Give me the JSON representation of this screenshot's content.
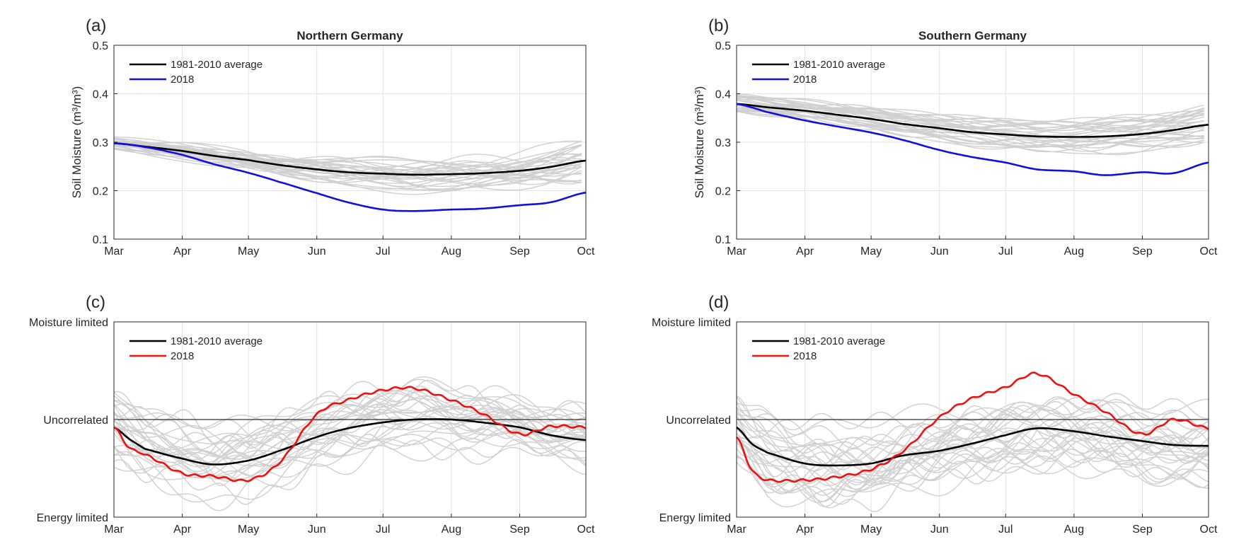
{
  "colors": {
    "average": "#000000",
    "soil_2018": "#1010e0",
    "coupling_2018": "#ee1111",
    "ensemble": "#d0d0d0",
    "grid": "#e3e3e3",
    "axes": "#262626"
  },
  "chart_data": [
    {
      "id": "a",
      "type": "line",
      "panel_label": "(a)",
      "title": "Northern Germany",
      "ylabel": "Soil Moisture (m³/m³)",
      "ylim": [
        0.1,
        0.5
      ],
      "yticks": [
        "0.1",
        "0.2",
        "0.3",
        "0.4",
        "0.5"
      ],
      "xticks": [
        "Mar",
        "Apr",
        "May",
        "Jun",
        "Jul",
        "Aug",
        "Sep",
        "Oct"
      ],
      "grid": true,
      "legend_position": "top-left",
      "x": [
        "Mar 1",
        "Mar 15",
        "Apr 1",
        "Apr 15",
        "May 1",
        "May 15",
        "Jun 1",
        "Jun 15",
        "Jul 1",
        "Jul 15",
        "Aug 1",
        "Aug 15",
        "Sep 1",
        "Sep 15",
        "Oct 1"
      ],
      "series": [
        {
          "name": "1981-2010 average",
          "role": "average",
          "values": [
            0.298,
            0.291,
            0.282,
            0.272,
            0.263,
            0.253,
            0.244,
            0.238,
            0.235,
            0.233,
            0.234,
            0.236,
            0.241,
            0.249,
            0.262
          ]
        },
        {
          "name": "2018",
          "role": "year",
          "values": [
            0.298,
            0.29,
            0.274,
            0.255,
            0.237,
            0.218,
            0.195,
            0.176,
            0.161,
            0.158,
            0.161,
            0.163,
            0.17,
            0.176,
            0.196
          ]
        }
      ],
      "ensemble": {
        "count": 30,
        "spread_start": 0.014,
        "spread_end": 0.05
      }
    },
    {
      "id": "b",
      "type": "line",
      "panel_label": "(b)",
      "title": "Southern Germany",
      "ylabel": "Soil Moisture (m³/m³)",
      "ylim": [
        0.1,
        0.5
      ],
      "yticks": [
        "0.1",
        "0.2",
        "0.3",
        "0.4",
        "0.5"
      ],
      "xticks": [
        "Mar",
        "Apr",
        "May",
        "Jun",
        "Jul",
        "Aug",
        "Sep",
        "Oct"
      ],
      "grid": true,
      "legend_position": "top-left",
      "x": [
        "Mar 1",
        "Mar 15",
        "Apr 1",
        "Apr 15",
        "May 1",
        "May 15",
        "Jun 1",
        "Jun 15",
        "Jul 1",
        "Jul 15",
        "Aug 1",
        "Aug 15",
        "Sep 1",
        "Sep 15",
        "Oct 1"
      ],
      "series": [
        {
          "name": "1981-2010 average",
          "role": "average",
          "values": [
            0.379,
            0.372,
            0.365,
            0.357,
            0.348,
            0.338,
            0.329,
            0.321,
            0.316,
            0.312,
            0.311,
            0.312,
            0.317,
            0.325,
            0.336
          ]
        },
        {
          "name": "2018",
          "role": "year",
          "values": [
            0.379,
            0.362,
            0.345,
            0.333,
            0.32,
            0.305,
            0.284,
            0.27,
            0.258,
            0.244,
            0.24,
            0.232,
            0.238,
            0.236,
            0.258
          ]
        }
      ],
      "ensemble": {
        "count": 30,
        "spread_start": 0.016,
        "spread_end": 0.035
      }
    },
    {
      "id": "c",
      "type": "line",
      "panel_label": "(c)",
      "title": "",
      "ylabel": "",
      "ylim": [
        -1,
        1
      ],
      "ytick_values": [
        -1,
        0,
        1
      ],
      "yticks": [
        "Energy limited",
        "Uncorrelated",
        "Moisture limited"
      ],
      "xticks": [
        "Mar",
        "Apr",
        "May",
        "Jun",
        "Jul",
        "Aug",
        "Sep",
        "Oct"
      ],
      "grid": true,
      "reference_line": 0,
      "legend_position": "top-left",
      "x": [
        "Mar 1",
        "Mar 8",
        "Mar 15",
        "Apr 1",
        "Apr 15",
        "May 1",
        "May 15",
        "Jun 1",
        "Jun 15",
        "Jul 1",
        "Jul 15",
        "Aug 1",
        "Aug 15",
        "Sep 1",
        "Sep 15",
        "Oct 1"
      ],
      "series": [
        {
          "name": "1981-2010 average",
          "role": "average",
          "values": [
            -0.08,
            -0.2,
            -0.3,
            -0.4,
            -0.46,
            -0.42,
            -0.32,
            -0.18,
            -0.09,
            -0.03,
            0.0,
            0.0,
            -0.03,
            -0.08,
            -0.16,
            -0.21
          ]
        },
        {
          "name": "2018",
          "role": "year",
          "values": [
            -0.08,
            -0.29,
            -0.36,
            -0.55,
            -0.58,
            -0.62,
            -0.44,
            0.05,
            0.2,
            0.3,
            0.32,
            0.2,
            0.06,
            -0.15,
            -0.07,
            -0.08
          ]
        }
      ],
      "ensemble": {
        "count": 30,
        "spread_start": 0.35,
        "spread_end": 0.25
      }
    },
    {
      "id": "d",
      "type": "line",
      "panel_label": "(d)",
      "title": "",
      "ylabel": "",
      "ylim": [
        -1,
        1
      ],
      "ytick_values": [
        -1,
        0,
        1
      ],
      "yticks": [
        "Energy limited",
        "Uncorrelated",
        "Moisture limited"
      ],
      "xticks": [
        "Mar",
        "Apr",
        "May",
        "Jun",
        "Jul",
        "Aug",
        "Sep",
        "Oct"
      ],
      "grid": true,
      "reference_line": 0,
      "legend_position": "top-left",
      "x": [
        "Mar 1",
        "Mar 8",
        "Mar 15",
        "Apr 1",
        "Apr 15",
        "May 1",
        "May 15",
        "Jun 1",
        "Jun 15",
        "Jul 1",
        "Jul 15",
        "Aug 1",
        "Aug 15",
        "Sep 1",
        "Sep 15",
        "Oct 1"
      ],
      "series": [
        {
          "name": "1981-2010 average",
          "role": "average",
          "values": [
            -0.08,
            -0.25,
            -0.34,
            -0.45,
            -0.47,
            -0.45,
            -0.37,
            -0.32,
            -0.25,
            -0.16,
            -0.09,
            -0.12,
            -0.17,
            -0.22,
            -0.26,
            -0.27
          ]
        },
        {
          "name": "2018",
          "role": "year",
          "values": [
            -0.18,
            -0.52,
            -0.62,
            -0.62,
            -0.59,
            -0.51,
            -0.33,
            0.02,
            0.21,
            0.33,
            0.47,
            0.26,
            0.08,
            -0.15,
            0.0,
            -0.09
          ]
        }
      ],
      "ensemble": {
        "count": 30,
        "spread_start": 0.35,
        "spread_end": 0.3
      }
    }
  ]
}
